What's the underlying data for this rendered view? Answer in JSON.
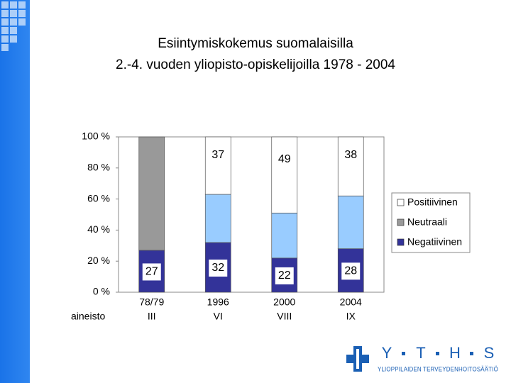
{
  "chart_data": {
    "type": "stacked-bar",
    "title": "Esiintymiskokemus suomalaisilla",
    "subtitle": "2.-4. vuoden yliopisto-opiskelijoilla 1978 - 2004",
    "xlabel": "aineisto",
    "categories": [
      "78/79",
      "1996",
      "2000",
      "2004"
    ],
    "subcategories": [
      "III",
      "VI",
      "VIII",
      "IX"
    ],
    "series": [
      {
        "name": "Negatiivinen",
        "color": "#333399",
        "values": [
          27,
          32,
          22,
          28
        ],
        "labels": true
      },
      {
        "name": "Neutraali",
        "color": "#999999",
        "point_colors": [
          "#999999",
          "#99ccff",
          "#99ccff",
          "#99ccff"
        ],
        "values": [
          73,
          31,
          29,
          34
        ],
        "labels": false
      },
      {
        "name": "Positiivinen",
        "color": "#ffffff",
        "values": [
          null,
          37,
          49,
          38
        ],
        "labels": true
      }
    ],
    "ylim": [
      0,
      100
    ],
    "yticks": [
      {
        "value": 0,
        "label": "0 %"
      },
      {
        "value": 20,
        "label": "20 %"
      },
      {
        "value": 40,
        "label": "40 %"
      },
      {
        "value": 60,
        "label": "60 %"
      },
      {
        "value": 80,
        "label": "80 %"
      },
      {
        "value": 100,
        "label": "100 %"
      }
    ],
    "legend": "right"
  },
  "logo": {
    "letters": [
      "Y",
      "T",
      "H",
      "S"
    ],
    "subtitle": "YLIOPPILAIDEN TERVEYDENHOITOSÄÄTIÖ"
  }
}
